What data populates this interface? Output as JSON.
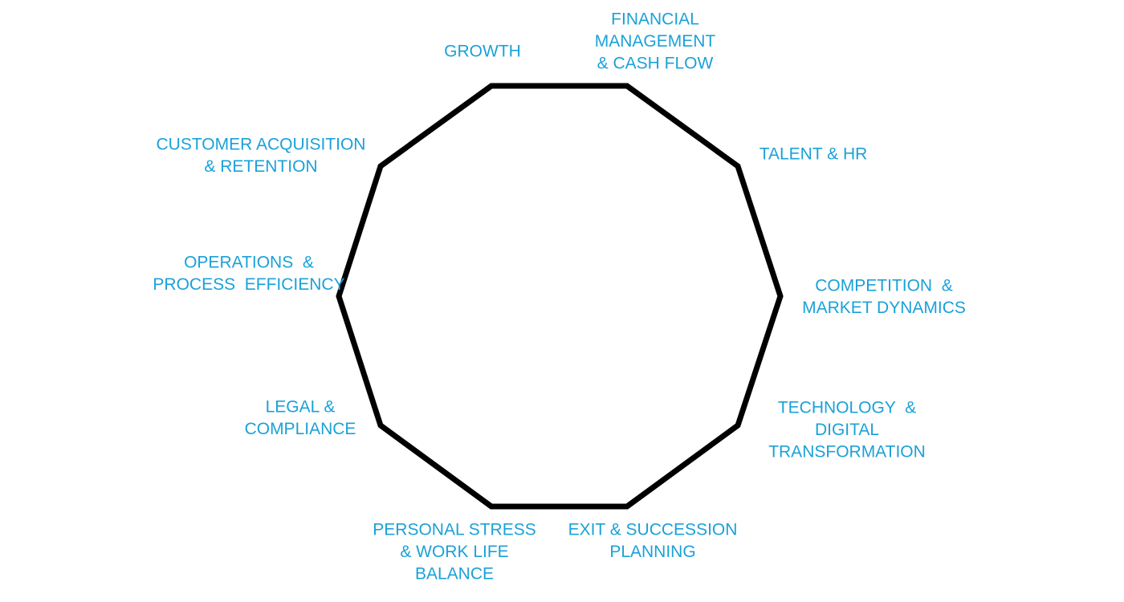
{
  "nodes": [
    {
      "lines": [
        "GROWTH"
      ]
    },
    {
      "lines": [
        "FINANCIAL",
        "MANAGEMENT",
        "& CASH FLOW"
      ]
    },
    {
      "lines": [
        "TALENT & HR"
      ]
    },
    {
      "lines": [
        "COMPETITION  &",
        "MARKET DYNAMICS"
      ]
    },
    {
      "lines": [
        "TECHNOLOGY  &",
        "DIGITAL",
        "TRANSFORMATION"
      ]
    },
    {
      "lines": [
        "EXIT & SUCCESSION",
        "PLANNING"
      ]
    },
    {
      "lines": [
        "PERSONAL STRESS",
        "& WORK LIFE",
        "BALANCE"
      ]
    },
    {
      "lines": [
        "LEGAL &",
        "COMPLIANCE"
      ]
    },
    {
      "lines": [
        "OPERATIONS  &",
        "PROCESS  EFFICIENCY"
      ]
    },
    {
      "lines": [
        "CUSTOMER ACQUISITION",
        "& RETENTION"
      ]
    }
  ]
}
